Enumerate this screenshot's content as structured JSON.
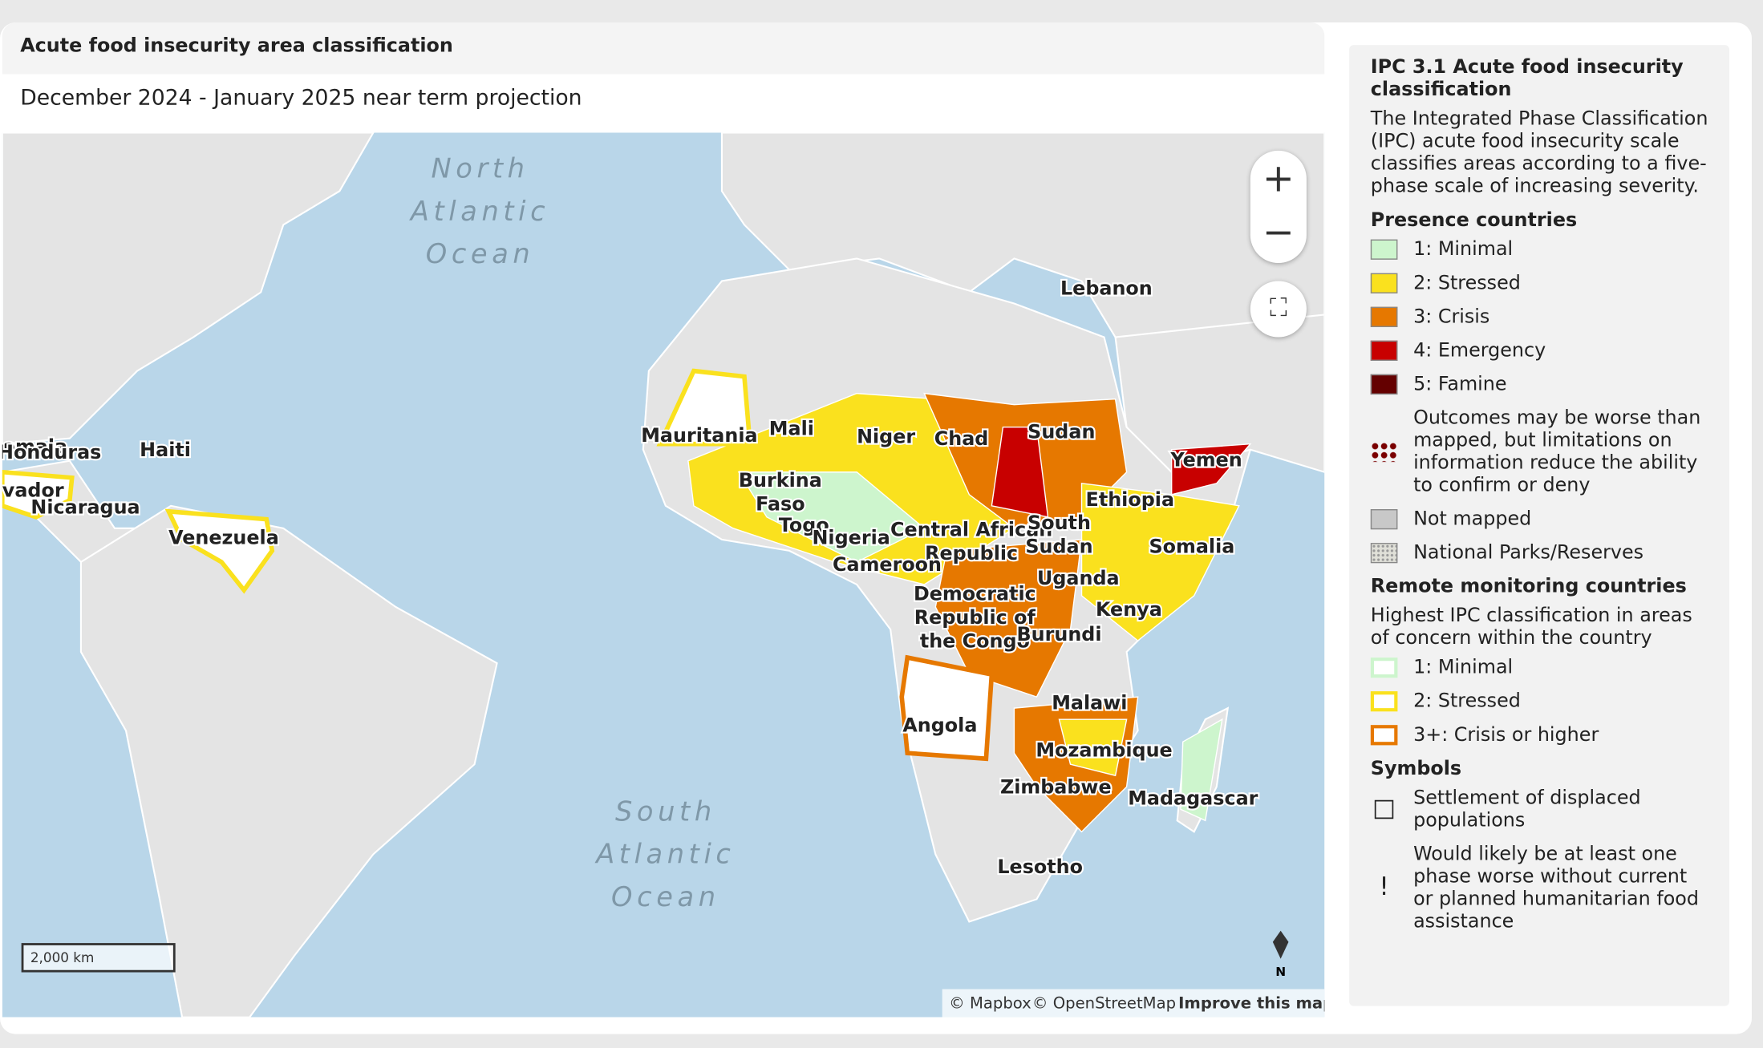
{
  "header": {
    "title": "Acute food insecurity area classification",
    "subtitle": "December 2024 - January 2025 near term projection"
  },
  "map": {
    "ocean_labels": [
      [
        "North",
        "Atlantic",
        "Ocean"
      ],
      [
        "South",
        "Atlantic",
        "Ocean"
      ]
    ],
    "country_labels": [
      [
        "Mauritania"
      ],
      [
        "Mali"
      ],
      [
        "Niger"
      ],
      [
        "Chad"
      ],
      [
        "Sudan"
      ],
      [
        "Yemen"
      ],
      [
        "Lebanon"
      ],
      [
        "emala"
      ],
      [
        "Honduras"
      ],
      [
        "Haiti"
      ],
      [
        "vador"
      ],
      [
        "Nicaragua"
      ],
      [
        "Venezuela"
      ],
      [
        "Burkina",
        "Faso"
      ],
      [
        "Togo"
      ],
      [
        "Nigeria"
      ],
      [
        "Central African",
        "Republic"
      ],
      [
        "Cameroon"
      ],
      [
        "South",
        "Sudan"
      ],
      [
        "Ethiopia"
      ],
      [
        "Somalia"
      ],
      [
        "Uganda"
      ],
      [
        "Kenya"
      ],
      [
        "Democratic",
        "Republic of",
        "the Congo"
      ],
      [
        "Burundi"
      ],
      [
        "Angola"
      ],
      [
        "Malawi"
      ],
      [
        "Mozambique"
      ],
      [
        "Zimbabwe"
      ],
      [
        "Madagascar"
      ],
      [
        "Lesotho"
      ]
    ],
    "scale": "2,000 km",
    "north": "N",
    "attribution": [
      "© Mapbox",
      "© OpenStreetMap",
      "Improve this map"
    ]
  },
  "legend": {
    "title": "IPC 3.1 Acute food insecurity classification",
    "description": "The Integrated Phase Classification (IPC) acute food insecurity scale classifies areas according to a five-phase scale of increasing severity.",
    "presence": {
      "title": "Presence countries",
      "items": [
        {
          "label": "1: Minimal",
          "color": "#cdf5cd"
        },
        {
          "label": "2: Stressed",
          "color": "#fae11e"
        },
        {
          "label": "3: Crisis",
          "color": "#e67800"
        },
        {
          "label": "4: Emergency",
          "color": "#c80000"
        },
        {
          "label": "5: Famine",
          "color": "#640000"
        },
        {
          "label": "Outcomes may be worse than mapped, but limitations on information reduce the ability to confirm or deny",
          "color": "#7a0000"
        },
        {
          "label": "Not mapped",
          "color": "#c8c8c8"
        },
        {
          "label": "National Parks/Reserves",
          "color": "#e0e0d8"
        }
      ]
    },
    "remote": {
      "title": "Remote monitoring countries",
      "description": "Highest IPC classification in areas of concern within the country",
      "items": [
        {
          "label": "1: Minimal",
          "color": "#cdf5cd"
        },
        {
          "label": "2: Stressed",
          "color": "#fae11e"
        },
        {
          "label": "3+: Crisis or higher",
          "color": "#e67800"
        }
      ]
    },
    "symbols": {
      "title": "Symbols",
      "items": [
        {
          "label": "Settlement of displaced populations",
          "symbol": "□"
        },
        {
          "label": "Would likely be at least one phase worse without current or planned humanitarian food assistance",
          "symbol": "!"
        }
      ]
    }
  }
}
